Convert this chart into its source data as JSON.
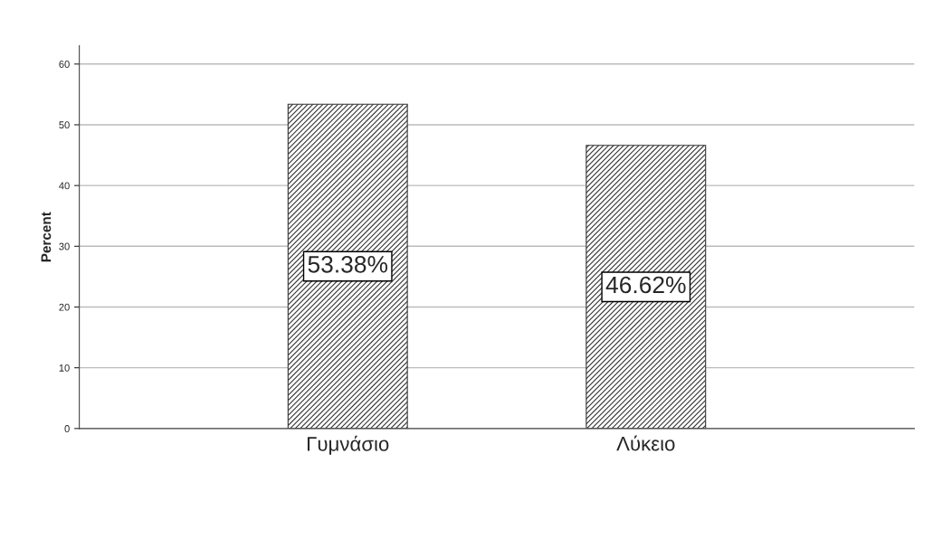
{
  "chart_data": {
    "type": "bar",
    "ylabel": "Percent",
    "categories": [
      "Γυμνάσιο",
      "Λύκειο"
    ],
    "values": [
      53.38,
      46.62
    ],
    "value_labels": [
      "53.38%",
      "46.62%"
    ],
    "color": "#333333",
    "ylim": [
      0,
      63
    ],
    "yticks": [
      0,
      10,
      20,
      30,
      40,
      50,
      60
    ],
    "grid": "y"
  }
}
